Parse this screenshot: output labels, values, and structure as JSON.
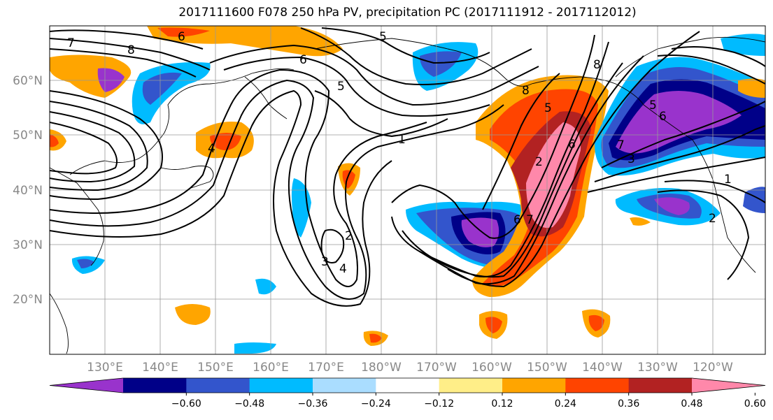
{
  "title": "2017111600 F078 250 hPa PV, precipitation PC (2017111912 - 2017112012)",
  "lat_labels": [
    "60°N",
    "50°N",
    "40°N",
    "30°N",
    "20°N"
  ],
  "lon_labels": [
    "130°E",
    "140°E",
    "150°E",
    "160°E",
    "170°E",
    "180°W",
    "170°W",
    "160°W",
    "150°W",
    "140°W",
    "130°W",
    "120°W"
  ],
  "colorbar": {
    "colors": [
      "#9933CC",
      "#000088",
      "#3355CC",
      "#00BBFF",
      "#AADDFF",
      "#FFFFFF",
      "#FFEE88",
      "#FFA500",
      "#FF4400",
      "#B22222",
      "#FF88AA"
    ],
    "ticks": [
      "−0.60",
      "−0.48",
      "−0.36",
      "−0.24",
      "−0.12",
      "0.12",
      "0.24",
      "0.36",
      "0.48",
      "0.60"
    ]
  },
  "contour_labels": [
    "7",
    "8",
    "6",
    "6",
    "5",
    "5",
    "8",
    "1",
    "2",
    "3",
    "4",
    "6",
    "7",
    "2",
    "6",
    "8",
    "4",
    "7",
    "5",
    "6",
    "3",
    "2",
    "1",
    "5"
  ]
}
